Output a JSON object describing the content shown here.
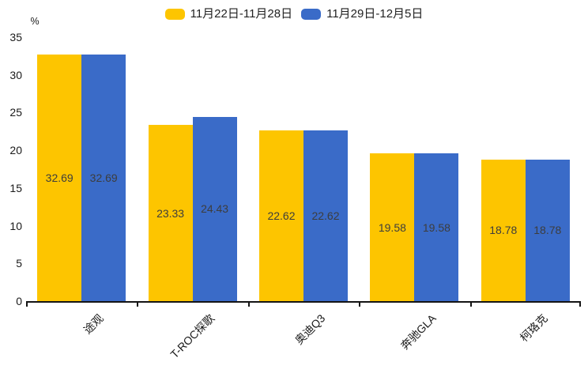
{
  "chart_data": {
    "type": "bar",
    "title": "",
    "categories": [
      "途观",
      "T-ROC探歌",
      "奥迪Q3",
      "奔驰GLA",
      "柯珞克"
    ],
    "series": [
      {
        "name": "11月22日-11月28日",
        "color": "#FDC500",
        "values": [
          32.69,
          23.33,
          22.62,
          19.58,
          18.78
        ]
      },
      {
        "name": "11月29日-12月5日",
        "color": "#3A6BC8",
        "values": [
          32.69,
          24.43,
          22.62,
          19.58,
          18.78
        ]
      }
    ],
    "xlabel": "",
    "ylabel": "%",
    "ylim": [
      0,
      35
    ],
    "yticks": [
      0,
      5,
      10,
      15,
      20,
      25,
      30,
      35
    ],
    "grid": false,
    "legend_position": "top",
    "value_labels": "inside-center",
    "axis_color": "#141414",
    "label_color": "#3d3d3d"
  }
}
